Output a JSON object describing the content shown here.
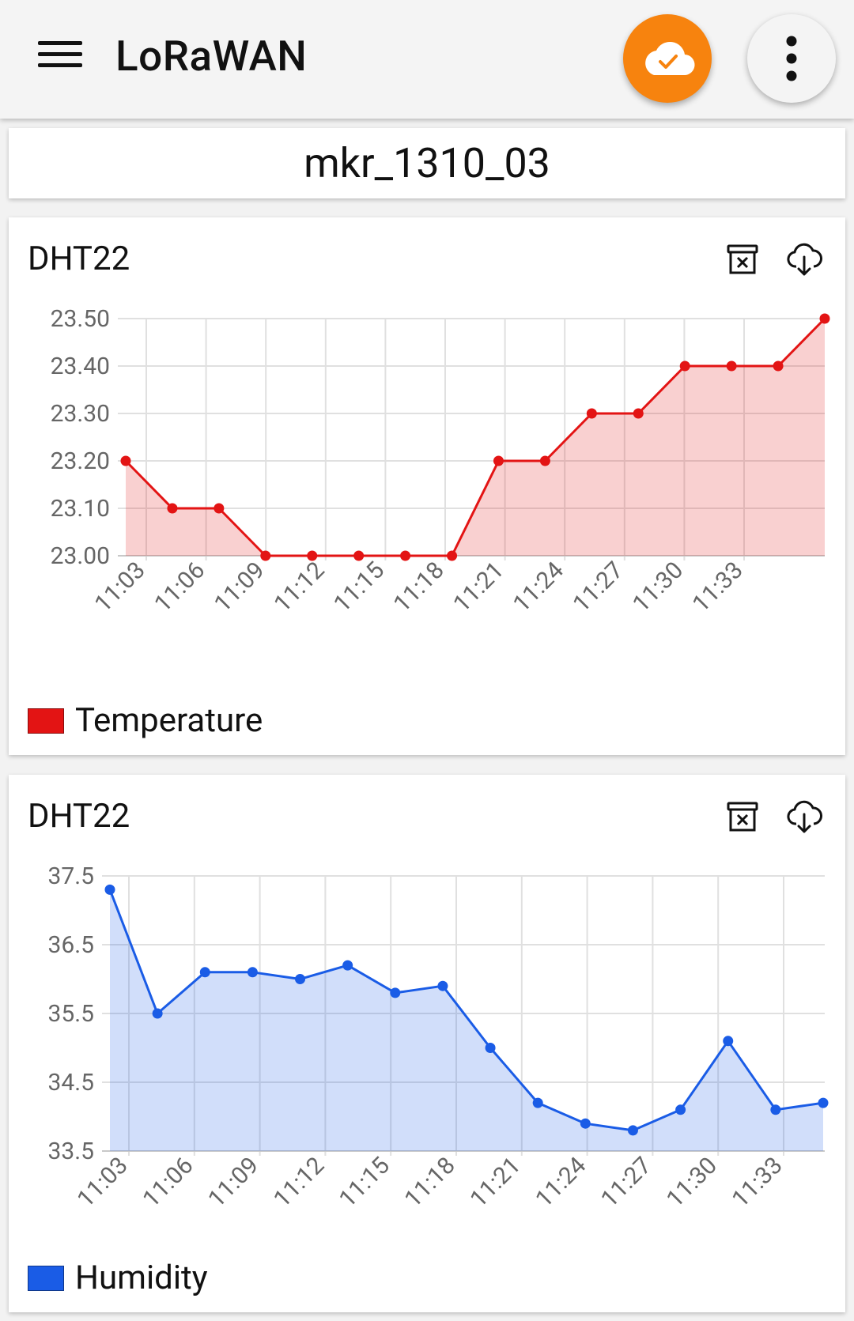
{
  "app": {
    "title": "LoRaWAN"
  },
  "icons": {
    "menu": "menu-icon",
    "cloud_status": "cloud-check-icon",
    "more": "more-vert-icon",
    "delete": "delete-icon",
    "download": "cloud-download-icon"
  },
  "colors": {
    "accent": "#f7830e",
    "temperature": "#e31414",
    "humidity": "#1a5ce6"
  },
  "device": {
    "name": "mkr_1310_03"
  },
  "charts": [
    {
      "title": "DHT22",
      "legend": "Temperature"
    },
    {
      "title": "DHT22",
      "legend": "Humidity"
    }
  ],
  "chart_data": [
    {
      "type": "area",
      "title": "DHT22",
      "series": [
        {
          "name": "Temperature",
          "color": "#e31414",
          "values": [
            23.2,
            23.1,
            23.1,
            23.0,
            23.0,
            23.0,
            23.0,
            23.0,
            23.2,
            23.2,
            23.3,
            23.3,
            23.4,
            23.4,
            23.4,
            23.5
          ]
        }
      ],
      "x_tick_labels": [
        "11:03",
        "11:06",
        "11:09",
        "11:12",
        "11:15",
        "11:18",
        "11:21",
        "11:24",
        "11:27",
        "11:30",
        "11:33"
      ],
      "y_tick_labels": [
        "23.00",
        "23.10",
        "23.20",
        "23.30",
        "23.40",
        "23.50"
      ],
      "ylim": [
        23.0,
        23.5
      ],
      "grid": true,
      "legend_position": "bottom-left"
    },
    {
      "type": "area",
      "title": "DHT22",
      "series": [
        {
          "name": "Humidity",
          "color": "#1a5ce6",
          "values": [
            37.3,
            35.5,
            36.1,
            36.1,
            36.0,
            36.2,
            35.8,
            35.9,
            35.0,
            34.2,
            33.9,
            33.8,
            34.1,
            35.1,
            34.1,
            34.2
          ]
        }
      ],
      "x_tick_labels": [
        "11:03",
        "11:06",
        "11:09",
        "11:12",
        "11:15",
        "11:18",
        "11:21",
        "11:24",
        "11:27",
        "11:30",
        "11:33"
      ],
      "y_tick_labels": [
        "33.5",
        "34.5",
        "35.5",
        "36.5",
        "37.5"
      ],
      "ylim": [
        33.5,
        37.5
      ],
      "grid": true,
      "legend_position": "bottom-left"
    }
  ]
}
